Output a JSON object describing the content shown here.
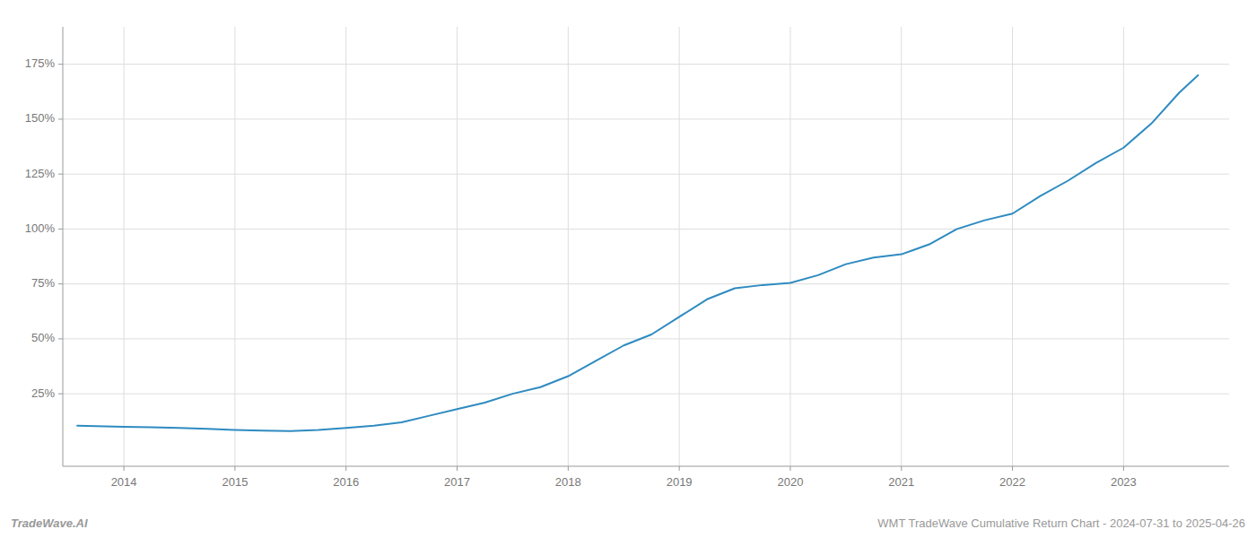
{
  "chart_data": {
    "type": "line",
    "x": [
      2013.58,
      2013.75,
      2014.0,
      2014.25,
      2014.5,
      2014.75,
      2015.0,
      2015.25,
      2015.5,
      2015.75,
      2016.0,
      2016.25,
      2016.5,
      2016.75,
      2017.0,
      2017.25,
      2017.5,
      2017.75,
      2018.0,
      2018.25,
      2018.5,
      2018.75,
      2019.0,
      2019.25,
      2019.5,
      2019.75,
      2020.0,
      2020.25,
      2020.5,
      2020.75,
      2021.0,
      2021.25,
      2021.5,
      2021.75,
      2022.0,
      2022.25,
      2022.5,
      2022.75,
      2023.0,
      2023.25,
      2023.5,
      2023.67
    ],
    "values": [
      10.5,
      10.3,
      10.0,
      9.8,
      9.5,
      9.0,
      8.5,
      8.2,
      8.0,
      8.5,
      9.5,
      10.5,
      12.0,
      15.0,
      18.0,
      21.0,
      25.0,
      28.0,
      33.0,
      40.0,
      47.0,
      52.0,
      60.0,
      68.0,
      73.0,
      74.5,
      75.5,
      79.0,
      84.0,
      87.0,
      88.5,
      93.0,
      100.0,
      104.0,
      107.0,
      115.0,
      122.0,
      130.0,
      137.0,
      148.0,
      162.0,
      170.0
    ],
    "color": "#2e8bc0",
    "xlim": [
      2013.45,
      2023.95
    ],
    "xticks": [
      2014,
      2015,
      2016,
      2017,
      2018,
      2019,
      2020,
      2021,
      2022,
      2023
    ],
    "ylim": [
      -8,
      192
    ],
    "yticks": [
      {
        "value": 25,
        "label": "25%"
      },
      {
        "value": 50,
        "label": "50%"
      },
      {
        "value": 75,
        "label": "75%"
      },
      {
        "value": 100,
        "label": "100%"
      },
      {
        "value": 125,
        "label": "125%"
      },
      {
        "value": 150,
        "label": "150%"
      },
      {
        "value": 175,
        "label": "175%"
      }
    ],
    "grid": true,
    "annotations": [
      "TradeWave.AI",
      "WMT TradeWave Cumulative Return Chart - 2024-07-31 to 2025-04-26"
    ]
  }
}
